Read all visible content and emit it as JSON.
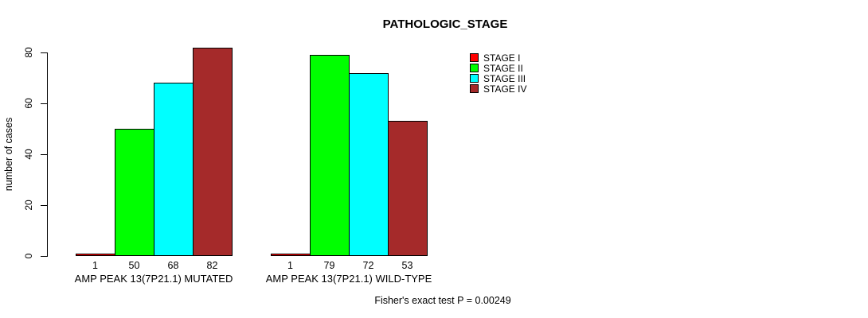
{
  "title": "PATHOLOGIC_STAGE",
  "ylabel": "number of cases",
  "footnote": "Fisher's exact test P = 0.00249",
  "legend": {
    "entries": [
      {
        "label": "STAGE I",
        "color": "#FF0000"
      },
      {
        "label": "STAGE II",
        "color": "#00FF00"
      },
      {
        "label": "STAGE III",
        "color": "#00FFFF"
      },
      {
        "label": "STAGE IV",
        "color": "#A52A2A"
      }
    ]
  },
  "chart_data": {
    "type": "bar",
    "title": "PATHOLOGIC_STAGE",
    "xlabel": "",
    "ylabel": "number of cases",
    "ylim": [
      0,
      80
    ],
    "yticks": [
      0,
      20,
      40,
      60,
      80
    ],
    "grid": false,
    "legend_position": "top-right",
    "categories": [
      "AMP PEAK 13(7P21.1) MUTATED",
      "AMP PEAK 13(7P21.1) WILD-TYPE"
    ],
    "series": [
      {
        "name": "STAGE I",
        "color": "#FF0000",
        "values": [
          1,
          1
        ]
      },
      {
        "name": "STAGE II",
        "color": "#00FF00",
        "values": [
          50,
          79
        ]
      },
      {
        "name": "STAGE III",
        "color": "#00FFFF",
        "values": [
          68,
          72
        ]
      },
      {
        "name": "STAGE IV",
        "color": "#A52A2A",
        "values": [
          82,
          53
        ]
      }
    ],
    "bar_value_labels": [
      [
        1,
        50,
        68,
        82
      ],
      [
        1,
        79,
        72,
        53
      ]
    ],
    "annotation": "Fisher's exact test P = 0.00249"
  }
}
